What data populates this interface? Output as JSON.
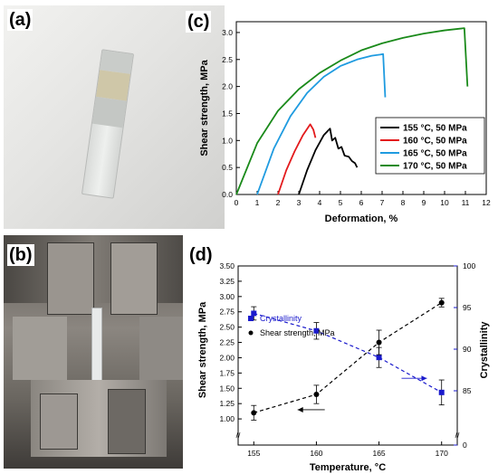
{
  "panels": {
    "a": {
      "label": "(a)"
    },
    "b": {
      "label": "(b)"
    },
    "c": {
      "label": "(c)"
    },
    "d": {
      "label": "(d)"
    }
  },
  "chart_data": [
    {
      "type": "line",
      "xlabel": "Deformation, %",
      "ylabel": "Shear strength, MPa",
      "xlim": [
        0,
        12
      ],
      "ylim": [
        0,
        3.2
      ],
      "xticks": [
        "0",
        "1",
        "2",
        "3",
        "4",
        "5",
        "6",
        "7",
        "8",
        "9",
        "10",
        "11",
        "12"
      ],
      "yticks": [
        "0.0",
        "0.5",
        "1.0",
        "1.5",
        "2.0",
        "2.5",
        "3.0"
      ],
      "legend_position": "bottom-right",
      "series": [
        {
          "name": "155 °C, 50 MPa",
          "color": "#000000",
          "x": [
            3.0,
            3.4,
            3.8,
            4.2,
            4.5,
            4.6,
            4.75,
            4.9,
            5.05,
            5.2,
            5.4,
            5.55,
            5.7,
            5.8
          ],
          "y": [
            0.0,
            0.45,
            0.82,
            1.1,
            1.22,
            1.0,
            1.05,
            0.85,
            0.88,
            0.72,
            0.7,
            0.62,
            0.58,
            0.5
          ]
        },
        {
          "name": "160 °C, 50 MPa",
          "color": "#e31a1c",
          "x": [
            2.0,
            2.4,
            2.8,
            3.2,
            3.55,
            3.7,
            3.8
          ],
          "y": [
            0.0,
            0.45,
            0.8,
            1.1,
            1.3,
            1.2,
            1.05
          ]
        },
        {
          "name": "165 °C, 50 MPa",
          "color": "#1f9be0",
          "x": [
            1.0,
            1.8,
            2.6,
            3.4,
            4.2,
            5.0,
            5.8,
            6.5,
            6.9,
            7.05,
            7.15
          ],
          "y": [
            0.0,
            0.85,
            1.45,
            1.88,
            2.18,
            2.38,
            2.5,
            2.57,
            2.59,
            2.6,
            1.8
          ]
        },
        {
          "name": "170 °C, 50 MPa",
          "color": "#1a8a1a",
          "x": [
            0.0,
            1.0,
            2.0,
            3.0,
            4.0,
            5.0,
            6.0,
            7.0,
            8.0,
            9.0,
            10.0,
            10.95,
            11.1
          ],
          "y": [
            0.0,
            0.95,
            1.55,
            1.95,
            2.25,
            2.48,
            2.67,
            2.8,
            2.9,
            2.98,
            3.04,
            3.08,
            2.0
          ]
        }
      ]
    },
    {
      "type": "scatter",
      "xlabel": "Temperature, °C",
      "ylabel": "Shear strength, MPa",
      "ylabel2": "Crystallinity",
      "x_categories": [
        "155",
        "160",
        "165",
        "170"
      ],
      "ylim": [
        0.75,
        3.5
      ],
      "y2lim": [
        0,
        100
      ],
      "yticks": [
        "1.00",
        "1.25",
        "1.50",
        "1.75",
        "2.00",
        "2.25",
        "2.50",
        "2.75",
        "3.00",
        "3.25",
        "3.50"
      ],
      "y2ticks": [
        "0",
        "85",
        "90",
        "95",
        "100"
      ],
      "legend_position": "left-middle",
      "series": [
        {
          "name": "Crystallinity",
          "axis": "right",
          "color": "#1a1acc",
          "marker": "square",
          "x": [
            155,
            160,
            165,
            170
          ],
          "y": [
            94.3,
            92.2,
            89.0,
            84.8
          ],
          "err": [
            0.8,
            1.0,
            1.2,
            1.5
          ]
        },
        {
          "name": "Shear strength, MPa",
          "axis": "left",
          "color": "#000000",
          "marker": "circle",
          "x": [
            155,
            160,
            165,
            170
          ],
          "y": [
            1.1,
            1.4,
            2.25,
            2.9
          ],
          "err": [
            0.12,
            0.15,
            0.2,
            0.07
          ]
        }
      ]
    }
  ]
}
